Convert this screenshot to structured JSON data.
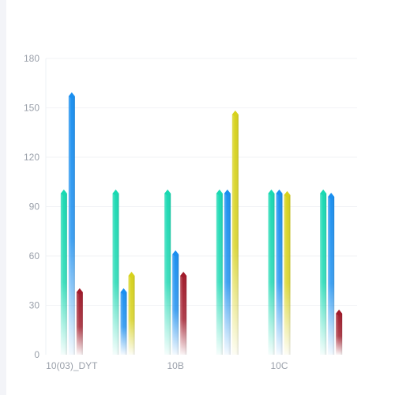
{
  "chart_data": {
    "type": "bar",
    "title": "",
    "xlabel": "",
    "ylabel": "",
    "ylim": [
      0,
      180
    ],
    "yticks": [
      0,
      30,
      60,
      90,
      120,
      150,
      180
    ],
    "grid": true,
    "legend": "none",
    "categories": [
      "10(03)_DYT",
      "",
      "10B",
      "",
      "10C",
      ""
    ],
    "series": [
      {
        "color": "#19d9b2",
        "values": [
          98,
          98,
          98,
          98,
          98,
          98
        ]
      },
      {
        "color": "#1a8ff0",
        "values": [
          157,
          38,
          61,
          98,
          98,
          96
        ]
      },
      {
        "color": "#d7d21c",
        "values": [
          null,
          48,
          null,
          146,
          97,
          null
        ]
      },
      {
        "color": "#a11a2a",
        "values": [
          38,
          null,
          48,
          null,
          null,
          25
        ]
      }
    ]
  }
}
